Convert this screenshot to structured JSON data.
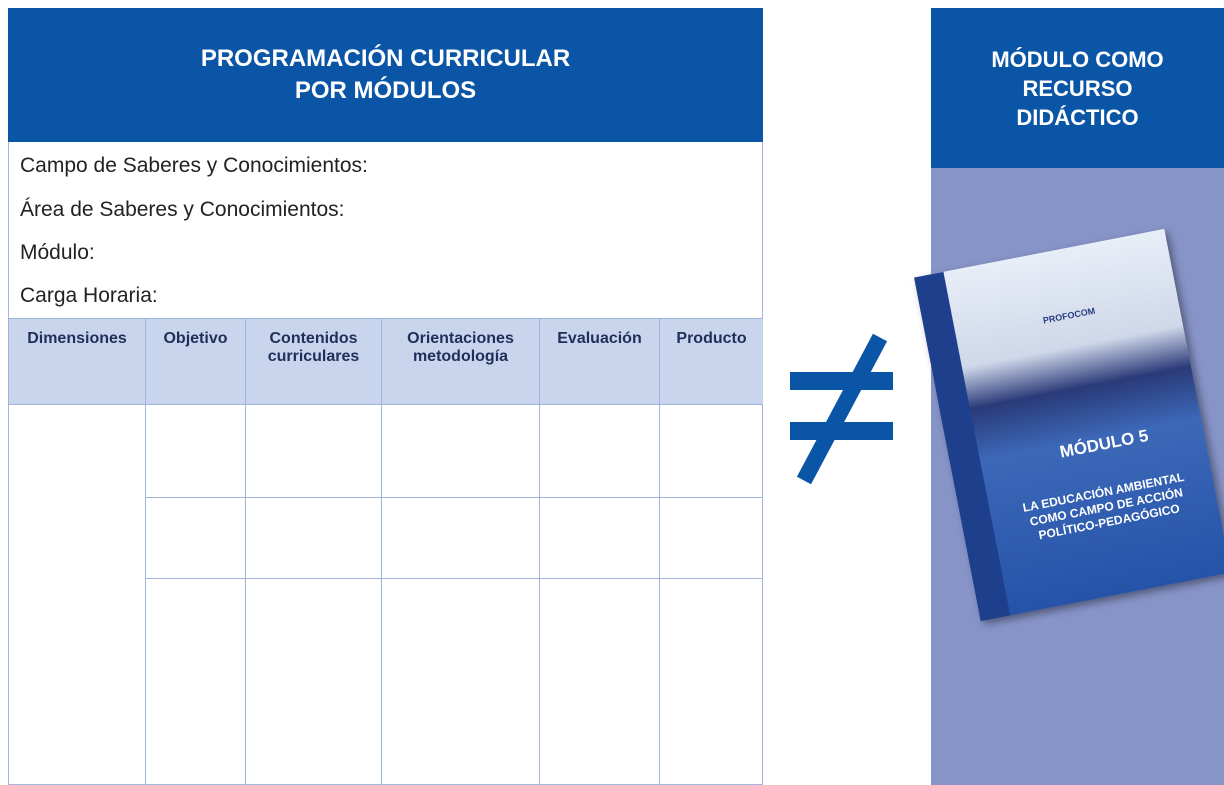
{
  "left_panel": {
    "title_lines": [
      "PROGRAMACIÓN CURRICULAR",
      "POR MÓDULOS"
    ],
    "fields": [
      "Campo de Saberes y Conocimientos:",
      "Área de Saberes y Conocimientos:",
      "Módulo:",
      "Carga Horaria:"
    ],
    "table": {
      "headers": [
        "Dimensiones",
        "Objetivo",
        "Contenidos curriculares",
        "Orientaciones metodología",
        "Evaluación",
        "Producto"
      ]
    }
  },
  "right_panel": {
    "title_lines": [
      "MÓDULO COMO",
      "RECURSO",
      "DIDÁCTICO"
    ],
    "book": {
      "program": "PROFOCOM",
      "label": "MÓDULO 5",
      "title_lines": [
        "LA EDUCACIÓN AMBIENTAL",
        "COMO CAMPO DE ACCIÓN",
        "POLÍTICO-PEDAGÓGICO"
      ]
    }
  }
}
